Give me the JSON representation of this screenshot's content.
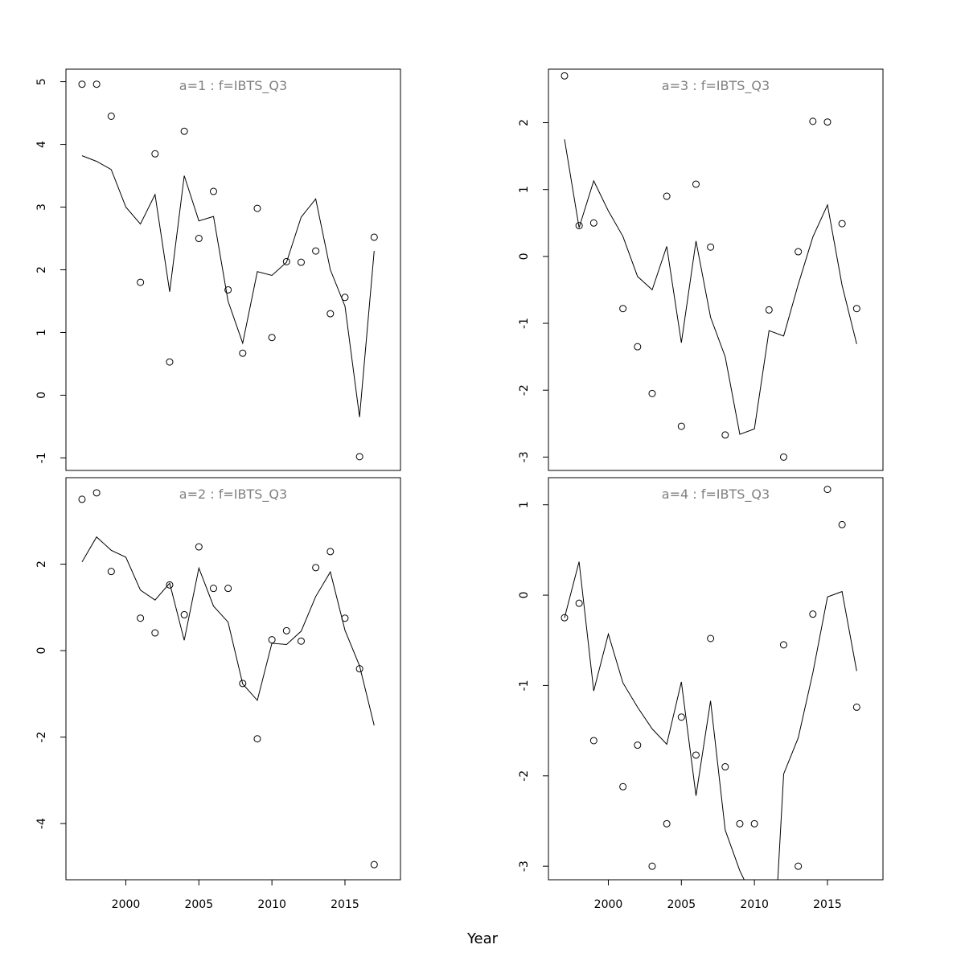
{
  "chart_data": {
    "xlabel": "Year",
    "x_ticks": [
      2000,
      2005,
      2010,
      2015
    ],
    "x_range": [
      1995.9,
      2018.8
    ],
    "panels": [
      {
        "title": "a=1  :  f=IBTS_Q3",
        "type": "scatter+line",
        "ylim": [
          -1.2,
          5.2
        ],
        "y_ticks": [
          -1,
          0,
          1,
          2,
          3,
          4,
          5
        ],
        "x_ticks_shown": false,
        "observed": {
          "x": [
            1997,
            1998,
            1999,
            2001,
            2002,
            2003,
            2004,
            2005,
            2006,
            2007,
            2008,
            2009,
            2010,
            2011,
            2012,
            2013,
            2014,
            2015,
            2016,
            2017
          ],
          "y": [
            4.96,
            4.96,
            4.45,
            1.8,
            3.85,
            0.53,
            4.21,
            2.5,
            3.25,
            1.68,
            0.67,
            2.98,
            0.92,
            2.13,
            2.12,
            2.3,
            1.3,
            1.56,
            -0.98,
            2.52
          ]
        },
        "fitted": {
          "x": [
            1997,
            1998,
            1999,
            2000,
            2001,
            2002,
            2003,
            2004,
            2005,
            2006,
            2007,
            2008,
            2009,
            2010,
            2011,
            2012,
            2013,
            2014,
            2015,
            2016,
            2017
          ],
          "y": [
            3.82,
            3.73,
            3.6,
            3.0,
            2.73,
            3.2,
            1.65,
            3.5,
            2.78,
            2.85,
            1.5,
            0.83,
            1.97,
            1.91,
            2.12,
            2.84,
            3.13,
            2.0,
            1.42,
            -0.35,
            2.3
          ]
        }
      },
      {
        "title": "a=3  :  f=IBTS_Q3",
        "type": "scatter+line",
        "ylim": [
          -3.2,
          2.8
        ],
        "y_ticks": [
          -3,
          -2,
          -1,
          0,
          1,
          2
        ],
        "x_ticks_shown": false,
        "observed": {
          "x": [
            1997,
            1998,
            1999,
            2001,
            2002,
            2003,
            2004,
            2005,
            2006,
            2007,
            2008,
            2011,
            2012,
            2013,
            2014,
            2015,
            2016,
            2017
          ],
          "y": [
            2.7,
            0.46,
            0.5,
            -0.78,
            -1.35,
            -2.05,
            0.9,
            -2.54,
            1.08,
            0.14,
            -2.67,
            -0.8,
            -3.0,
            0.07,
            2.02,
            2.01,
            0.49,
            -0.78
          ]
        },
        "fitted": {
          "x": [
            1997,
            1998,
            1999,
            2000,
            2001,
            2002,
            2003,
            2004,
            2005,
            2006,
            2007,
            2008,
            2009,
            2010,
            2011,
            2012,
            2013,
            2014,
            2015,
            2016,
            2017
          ],
          "y": [
            1.75,
            0.43,
            1.13,
            0.68,
            0.3,
            -0.3,
            -0.5,
            0.15,
            -1.29,
            0.23,
            -0.91,
            -1.5,
            -2.66,
            -2.58,
            -1.11,
            -1.19,
            -0.42,
            0.29,
            0.77,
            -0.43,
            -1.31
          ]
        }
      },
      {
        "title": "a=2  :  f=IBTS_Q3",
        "type": "scatter+line",
        "ylim": [
          -5.3,
          4.0
        ],
        "y_ticks": [
          -4,
          -2,
          0,
          2
        ],
        "x_ticks_shown": true,
        "observed": {
          "x": [
            1997,
            1998,
            1999,
            2001,
            2002,
            2003,
            2004,
            2005,
            2006,
            2007,
            2008,
            2009,
            2010,
            2011,
            2012,
            2013,
            2014,
            2015,
            2016,
            2017
          ],
          "y": [
            3.5,
            3.65,
            1.83,
            0.75,
            0.41,
            1.52,
            0.83,
            2.4,
            1.44,
            1.44,
            -0.76,
            -2.04,
            0.25,
            0.46,
            0.22,
            1.92,
            2.29,
            0.75,
            -0.42,
            -4.95
          ]
        },
        "fitted": {
          "x": [
            1997,
            1998,
            1999,
            2000,
            2001,
            2002,
            2003,
            2004,
            2005,
            2006,
            2007,
            2008,
            2009,
            2010,
            2011,
            2012,
            2013,
            2014,
            2015,
            2016,
            2017
          ],
          "y": [
            2.05,
            2.63,
            2.32,
            2.16,
            1.4,
            1.17,
            1.56,
            0.24,
            1.91,
            1.03,
            0.66,
            -0.77,
            -1.15,
            0.17,
            0.14,
            0.45,
            1.25,
            1.82,
            0.47,
            -0.35,
            -1.73
          ]
        }
      },
      {
        "title": "a=4  :  f=IBTS_Q3",
        "type": "scatter+line",
        "ylim": [
          -3.15,
          1.3
        ],
        "y_ticks": [
          -3,
          -2,
          -1,
          0,
          1
        ],
        "x_ticks_shown": true,
        "observed": {
          "x": [
            1997,
            1998,
            1999,
            2001,
            2002,
            2003,
            2004,
            2005,
            2006,
            2007,
            2008,
            2009,
            2010,
            2012,
            2013,
            2014,
            2015,
            2016,
            2017
          ],
          "y": [
            -0.25,
            -0.09,
            -1.61,
            -2.12,
            -1.66,
            -3.0,
            -2.53,
            -1.35,
            -1.77,
            -0.48,
            -1.9,
            -2.53,
            -2.53,
            -0.55,
            -3.0,
            -0.21,
            1.17,
            0.78,
            -1.24
          ]
        },
        "fitted": {
          "x": [
            1997,
            1998,
            1999,
            2000,
            2001,
            2002,
            2003,
            2004,
            2005,
            2006,
            2007,
            2008,
            2009,
            2009.3,
            2011.6,
            2012,
            2013,
            2014,
            2015,
            2016,
            2017
          ],
          "y": [
            -0.25,
            0.37,
            -1.06,
            -0.43,
            -0.97,
            -1.24,
            -1.48,
            -1.65,
            -0.96,
            -2.22,
            -1.17,
            -2.6,
            -3.05,
            -3.15,
            -3.15,
            -1.98,
            -1.58,
            -0.86,
            -0.02,
            0.04,
            -0.84
          ]
        }
      }
    ]
  }
}
